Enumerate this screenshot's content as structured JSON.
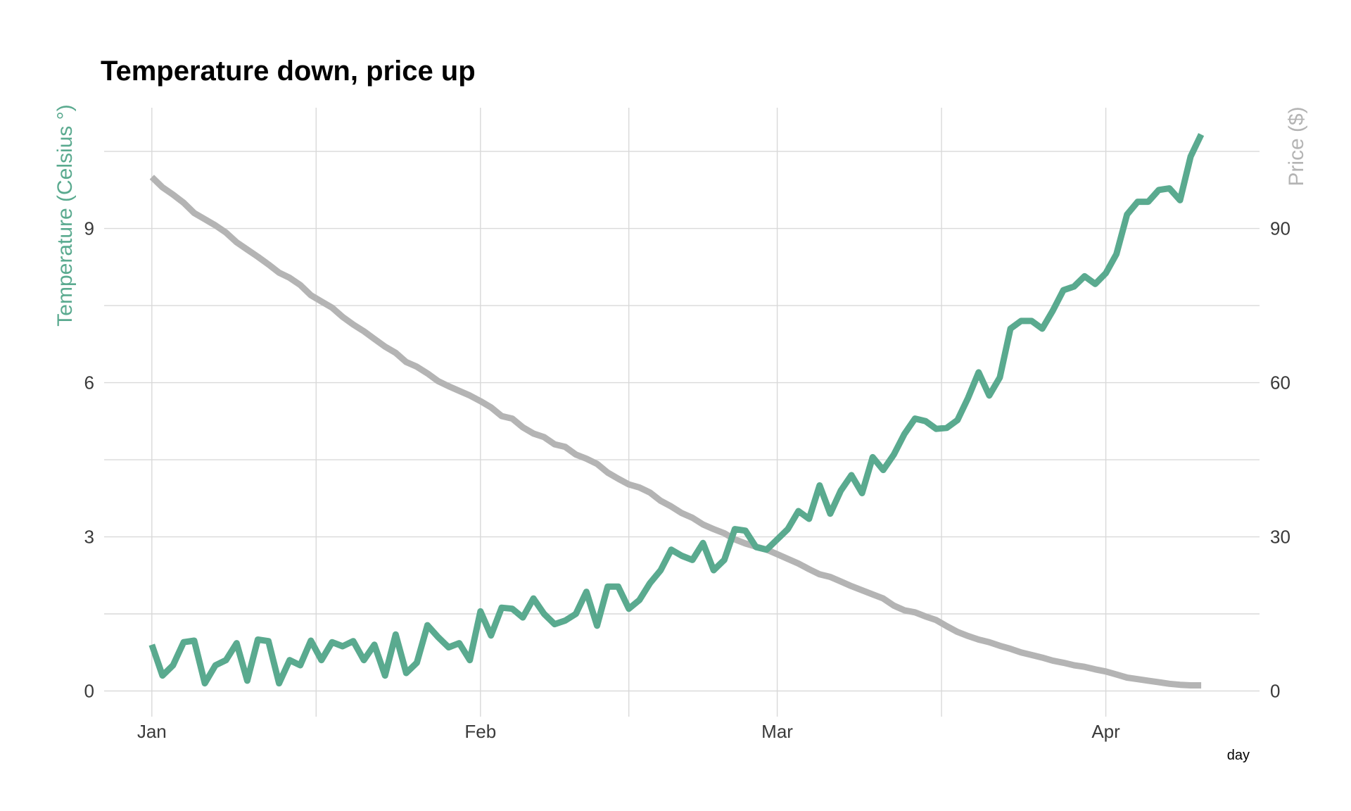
{
  "chart_data": {
    "type": "line",
    "title": "Temperature down, price up",
    "xlabel": "day",
    "y_left_label": "Temperature (Celsius °)",
    "y_right_label": "Price ($)",
    "x_ticks": [
      "Jan",
      "Feb",
      "Mar",
      "Apr"
    ],
    "x_tick_days": [
      0,
      31,
      59,
      90
    ],
    "x_minor_days": [
      15.5,
      45,
      74.5
    ],
    "xlim": [
      -4.5,
      104.5
    ],
    "y_left_ticks": [
      "0",
      "3",
      "6",
      "9"
    ],
    "y_left_tick_values": [
      0,
      3,
      6,
      9
    ],
    "y_left_minor": [
      1.5,
      4.5,
      7.5,
      10.5
    ],
    "y_left_lim": [
      -0.5,
      11.35
    ],
    "y_right_ticks": [
      "0",
      "30",
      "60",
      "90"
    ],
    "y_right_tick_values": [
      0,
      30,
      60,
      90
    ],
    "colors": {
      "temperature": "#5aaa8f",
      "price": "#b4b4b4",
      "grid": "#d9d9d9"
    },
    "series": [
      {
        "name": "Temperature",
        "axis": "left",
        "values": [
          0.9,
          0.3,
          0.5,
          0.95,
          0.98,
          0.15,
          0.5,
          0.6,
          0.93,
          0.2,
          1.0,
          0.97,
          0.15,
          0.6,
          0.5,
          0.98,
          0.6,
          0.95,
          0.87,
          0.97,
          0.6,
          0.9,
          0.3,
          1.1,
          0.35,
          0.55,
          1.28,
          1.05,
          0.85,
          0.93,
          0.6,
          1.55,
          1.08,
          1.62,
          1.6,
          1.43,
          1.8,
          1.5,
          1.3,
          1.37,
          1.5,
          1.93,
          1.27,
          2.03,
          2.03,
          1.6,
          1.77,
          2.1,
          2.35,
          2.75,
          2.63,
          2.55,
          2.88,
          2.35,
          2.55,
          3.15,
          3.12,
          2.8,
          2.75,
          2.95,
          3.15,
          3.5,
          3.35,
          4.0,
          3.45,
          3.9,
          4.2,
          3.85,
          4.55,
          4.3,
          4.6,
          5.0,
          5.3,
          5.25,
          5.1,
          5.12,
          5.27,
          5.7,
          6.2,
          5.75,
          6.1,
          7.05,
          7.2,
          7.2,
          7.05,
          7.4,
          7.8,
          7.87,
          8.07,
          7.92,
          8.13,
          8.5,
          9.27,
          9.52,
          9.52,
          9.75,
          9.78,
          9.55,
          10.4,
          10.83
        ]
      },
      {
        "name": "Price",
        "axis": "right",
        "values": [
          100,
          98,
          96.6,
          95,
          93,
          91.8,
          90.6,
          89.2,
          87.3,
          85.9,
          84.5,
          83,
          81.4,
          80.4,
          79,
          77,
          75.8,
          74.6,
          72.8,
          71.3,
          70,
          68.5,
          67,
          65.8,
          64,
          63.1,
          61.8,
          60.3,
          59.3,
          58.4,
          57.5,
          56.4,
          55.2,
          53.5,
          53,
          51.3,
          50.1,
          49.4,
          48,
          47.5,
          46,
          45.2,
          44.2,
          42.5,
          41.3,
          40.2,
          39.6,
          38.6,
          37,
          35.9,
          34.6,
          33.7,
          32.4,
          31.5,
          30.7,
          29.5,
          28.7,
          28.1,
          27.5,
          26.6,
          25.7,
          24.8,
          23.7,
          22.7,
          22.2,
          21.3,
          20.4,
          19.6,
          18.8,
          18,
          16.6,
          15.7,
          15.3,
          14.5,
          13.8,
          12.6,
          11.5,
          10.7,
          10,
          9.5,
          8.8,
          8.2,
          7.5,
          7,
          6.5,
          5.9,
          5.5,
          5,
          4.7,
          4.2,
          3.8,
          3.2,
          2.6,
          2.3,
          2,
          1.7,
          1.4,
          1.2,
          1.1,
          1.1
        ]
      }
    ]
  }
}
